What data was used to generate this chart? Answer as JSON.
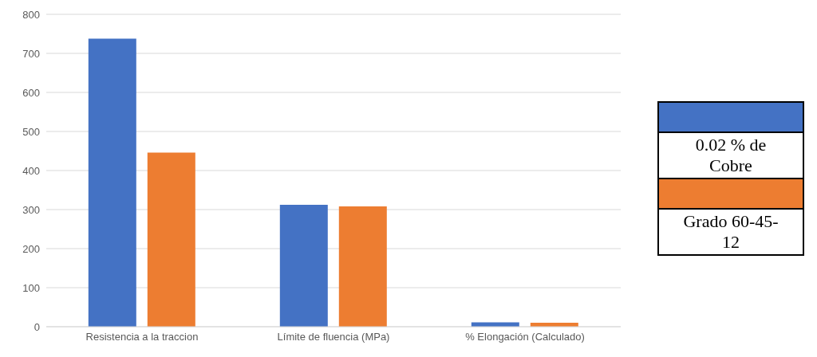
{
  "chart_data": {
    "type": "bar",
    "categories": [
      "Resistencia a la traccion",
      "Límite de fluencia (MPa)",
      "% Elongación (Calculado)"
    ],
    "series": [
      {
        "name": "0.02 % de Cobre",
        "color": "#4472c4",
        "values": [
          738,
          312,
          11
        ]
      },
      {
        "name": "Grado 60-45-12",
        "color": "#ed7d31",
        "values": [
          446,
          308,
          10
        ]
      }
    ],
    "ylim": [
      0,
      800
    ],
    "yticks": [
      0,
      100,
      200,
      300,
      400,
      500,
      600,
      700,
      800
    ],
    "grid": "y",
    "legend": "right"
  }
}
